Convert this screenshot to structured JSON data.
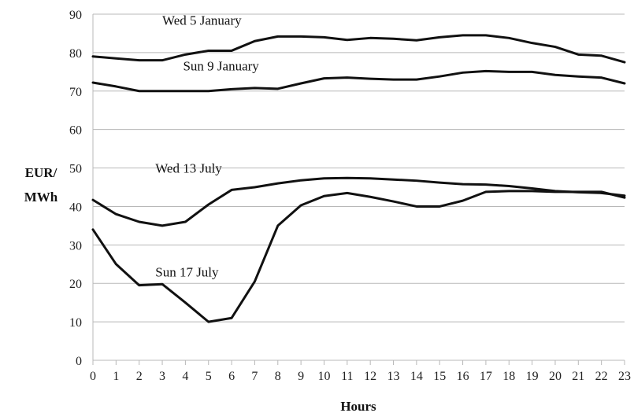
{
  "chart_data": {
    "type": "line",
    "title": "",
    "xlabel": "Hours",
    "ylabel_lines": [
      "EUR/",
      "MWh"
    ],
    "xlim": [
      0,
      23
    ],
    "ylim": [
      0,
      90
    ],
    "y_ticks": [
      "0",
      "10",
      "20",
      "30",
      "40",
      "50",
      "60",
      "70",
      "80",
      "90"
    ],
    "x_ticks": [
      "0",
      "1",
      "2",
      "3",
      "4",
      "5",
      "6",
      "7",
      "8",
      "9",
      "10",
      "11",
      "12",
      "13",
      "14",
      "15",
      "16",
      "17",
      "18",
      "19",
      "20",
      "21",
      "22",
      "23"
    ],
    "grid": "horizontal",
    "x": [
      0,
      1,
      2,
      3,
      4,
      5,
      6,
      7,
      8,
      9,
      10,
      11,
      12,
      13,
      14,
      15,
      16,
      17,
      18,
      19,
      20,
      21,
      22,
      23
    ],
    "series": [
      {
        "name": "Wed 5 January",
        "values": [
          79,
          78.5,
          78,
          78,
          79.5,
          80.5,
          80.5,
          83,
          84.2,
          84.2,
          84,
          83.3,
          83.8,
          83.6,
          83.2,
          84,
          84.5,
          84.5,
          83.8,
          82.5,
          81.5,
          79.5,
          79.2,
          77.5
        ]
      },
      {
        "name": "Sun 9 January",
        "values": [
          72.2,
          71.2,
          70,
          70,
          70,
          70,
          70.5,
          70.8,
          70.6,
          72,
          73.3,
          73.5,
          73.2,
          73,
          73,
          73.8,
          74.8,
          75.2,
          75,
          75,
          74.2,
          73.8,
          73.5,
          72
        ]
      },
      {
        "name": "Wed 13 July",
        "values": [
          41.7,
          38,
          36,
          35,
          36,
          40.5,
          44.3,
          45,
          46,
          46.8,
          47.3,
          47.4,
          47.3,
          47,
          46.7,
          46.2,
          45.8,
          45.7,
          45.3,
          44.7,
          44,
          43.7,
          43.5,
          42.8
        ]
      },
      {
        "name": "Sun 17 July",
        "values": [
          34,
          25,
          19.5,
          19.8,
          15,
          10,
          11,
          20.5,
          35,
          40.3,
          42.7,
          43.5,
          42.5,
          41.3,
          40,
          40,
          41.5,
          43.8,
          44,
          44,
          43.8,
          43.8,
          43.8,
          42.3
        ]
      }
    ]
  }
}
